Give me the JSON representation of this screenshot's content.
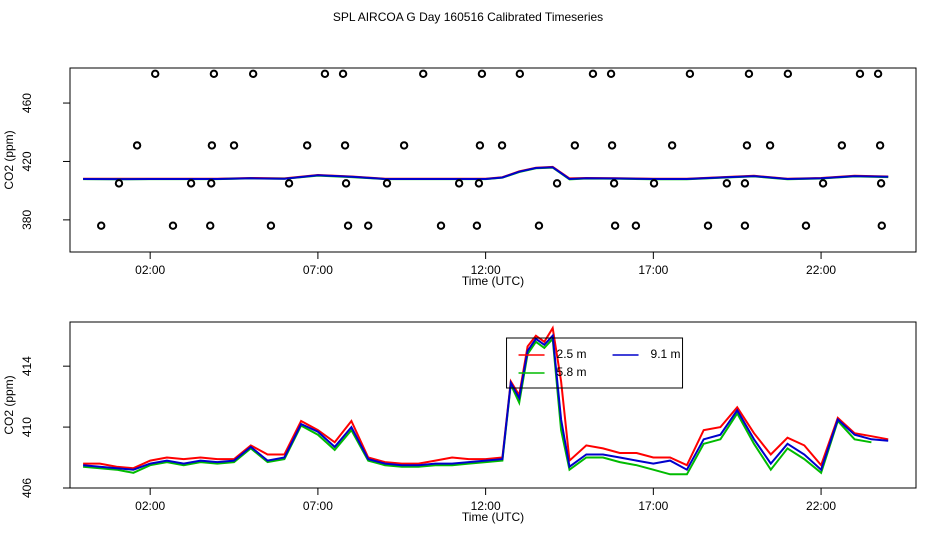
{
  "chart_data": [
    {
      "type": "line",
      "title": "SPL AIRCOA G  Day 160516  Calibrated Timeseries",
      "xlabel": "Time (UTC)",
      "ylabel": "CO2 (ppm)",
      "xlim": [
        -0.39,
        24.83
      ],
      "xticks": [
        {
          "value": 2,
          "label": "02:00"
        },
        {
          "value": 7,
          "label": "07:00"
        },
        {
          "value": 12,
          "label": "12:00"
        },
        {
          "value": 17,
          "label": "17:00"
        },
        {
          "value": 22,
          "label": "22:00"
        }
      ],
      "ylim": [
        358,
        484
      ],
      "yticks": [
        380,
        420,
        460
      ],
      "x": [
        0,
        1,
        2,
        3,
        4,
        5,
        6,
        7,
        8,
        9,
        10,
        11,
        12,
        12.5,
        13,
        13.5,
        14,
        14.5,
        15,
        16,
        17,
        18,
        19,
        20,
        21,
        22,
        23,
        24
      ],
      "series": [
        {
          "color": "#ff0000",
          "values": [
            408.2,
            408.1,
            408.2,
            408.2,
            408.2,
            408.7,
            408.4,
            410.7,
            409.7,
            408.2,
            408.2,
            408.2,
            408.2,
            409.2,
            413.2,
            415.7,
            416.3,
            408.4,
            408.7,
            408.5,
            408.2,
            408.2,
            409.2,
            410.2,
            408.2,
            408.7,
            410.2,
            409.7
          ]
        },
        {
          "color": "#00cc00",
          "values": [
            407.9,
            407.8,
            407.9,
            407.9,
            407.9,
            408.4,
            408.1,
            410.3,
            409.3,
            407.9,
            407.9,
            407.9,
            407.9,
            408.9,
            412.8,
            415.3,
            415.8,
            407.8,
            408.3,
            408.1,
            407.8,
            407.8,
            408.8,
            409.8,
            407.8,
            408.3,
            409.8,
            409.3
          ]
        },
        {
          "color": "#0000cc",
          "values": [
            408,
            407.9,
            408,
            408,
            408,
            408.5,
            408.2,
            410.5,
            409.5,
            408,
            408,
            408,
            408,
            409,
            413,
            415.5,
            416,
            408,
            408.5,
            408.3,
            408,
            408,
            409,
            410,
            408,
            408.5,
            410,
            409.5
          ]
        }
      ],
      "points": {
        "color": "#000000",
        "x": [
          2.15,
          3.9,
          5.07,
          7.21,
          7.75,
          10.14,
          11.89,
          13.02,
          15.2,
          15.74,
          18.09,
          19.85,
          21.01,
          23.16,
          23.7,
          1.61,
          3.84,
          4.5,
          6.68,
          7.81,
          9.57,
          11.83,
          12.49,
          14.66,
          15.77,
          17.56,
          19.79,
          20.48,
          22.62,
          23.76,
          1.07,
          3.22,
          3.82,
          6.14,
          7.84,
          9.06,
          11.21,
          11.8,
          14.13,
          15.83,
          17.02,
          19.19,
          19.73,
          22.06,
          23.79,
          0.54,
          2.68,
          3.79,
          5.6,
          7.9,
          8.5,
          10.67,
          11.74,
          13.59,
          15.86,
          16.48,
          18.63,
          19.73,
          21.55,
          23.81
        ],
        "y": [
          480,
          480,
          480,
          480,
          480,
          480,
          480,
          480,
          480,
          480,
          480,
          480,
          480,
          480,
          480,
          431,
          431,
          431,
          431,
          431,
          431,
          431,
          431,
          431,
          431,
          431,
          431,
          431,
          431,
          431,
          405,
          405,
          405,
          405,
          405,
          405,
          405,
          405,
          405,
          405,
          405,
          405,
          405,
          405,
          405,
          376,
          376,
          376,
          376,
          376,
          376,
          376,
          376,
          376,
          376,
          376,
          376,
          376,
          376,
          376
        ]
      }
    },
    {
      "type": "line",
      "xlabel": "Time (UTC)",
      "ylabel": "CO2 (ppm)",
      "legend": "top",
      "xlim": [
        -0.39,
        24.83
      ],
      "xticks": [
        {
          "value": 2,
          "label": "02:00"
        },
        {
          "value": 7,
          "label": "07:00"
        },
        {
          "value": 12,
          "label": "12:00"
        },
        {
          "value": 17,
          "label": "17:00"
        },
        {
          "value": 22,
          "label": "22:00"
        }
      ],
      "ylim": [
        406,
        416.9
      ],
      "yticks": [
        406,
        410,
        414
      ],
      "x": [
        0,
        0.5,
        1,
        1.5,
        2,
        2.5,
        3,
        3.5,
        4,
        4.5,
        5,
        5.5,
        6,
        6.5,
        7,
        7.5,
        8,
        8.5,
        9,
        9.5,
        10,
        10.5,
        11,
        11.5,
        12,
        12.5,
        12.75,
        13,
        13.25,
        13.5,
        13.75,
        14,
        14.25,
        14.5,
        15,
        15.5,
        16,
        16.5,
        17,
        17.5,
        18,
        18.5,
        19,
        19.5,
        20,
        20.5,
        21,
        21.5,
        22,
        22.5,
        23,
        23.5,
        24
      ],
      "series": [
        {
          "name": "2.5 m",
          "color": "#ff0000",
          "values": [
            407.6,
            407.6,
            407.4,
            407.3,
            407.8,
            408.0,
            407.9,
            408.0,
            407.9,
            407.9,
            408.8,
            408.2,
            408.2,
            410.4,
            409.8,
            409.0,
            410.4,
            408.0,
            407.7,
            407.6,
            407.6,
            407.8,
            408.0,
            407.9,
            407.9,
            408.0,
            413.0,
            412.1,
            415.3,
            416.0,
            415.6,
            416.5,
            413.0,
            407.8,
            408.8,
            408.6,
            408.3,
            408.3,
            408.0,
            408.0,
            407.5,
            409.8,
            410.0,
            411.3,
            409.6,
            408.2,
            409.3,
            408.8,
            407.5,
            410.6,
            409.6,
            409.4,
            409.2
          ]
        },
        {
          "name": "5.8 m",
          "color": "#00bb00",
          "values": [
            407.4,
            407.3,
            407.2,
            407.0,
            407.5,
            407.7,
            407.5,
            407.7,
            407.6,
            407.7,
            408.6,
            407.7,
            407.9,
            410.1,
            409.5,
            408.5,
            409.8,
            407.8,
            407.5,
            407.4,
            407.4,
            407.5,
            407.5,
            407.6,
            407.7,
            407.8,
            412.8,
            411.6,
            414.8,
            415.6,
            415.2,
            415.8,
            409.8,
            407.2,
            408.0,
            408.0,
            407.7,
            407.5,
            407.2,
            406.9,
            406.9,
            408.9,
            409.2,
            410.9,
            408.9,
            407.2,
            408.6,
            407.9,
            407.0,
            410.4,
            409.2,
            409.0,
            null
          ]
        },
        {
          "name": "9.1 m",
          "color": "#0000cc",
          "values": [
            407.5,
            407.4,
            407.3,
            407.2,
            407.6,
            407.8,
            407.6,
            407.8,
            407.7,
            407.8,
            408.7,
            407.8,
            408.0,
            410.2,
            409.7,
            408.7,
            410.0,
            407.9,
            407.6,
            407.5,
            407.5,
            407.6,
            407.6,
            407.7,
            407.8,
            407.9,
            412.9,
            411.9,
            415.0,
            415.8,
            415.4,
            416.0,
            410.5,
            407.4,
            408.2,
            408.2,
            408.0,
            407.8,
            407.6,
            407.8,
            407.2,
            409.2,
            409.5,
            411.1,
            409.2,
            407.6,
            408.9,
            408.2,
            407.2,
            410.5,
            409.5,
            409.2,
            409.1
          ]
        }
      ]
    }
  ]
}
